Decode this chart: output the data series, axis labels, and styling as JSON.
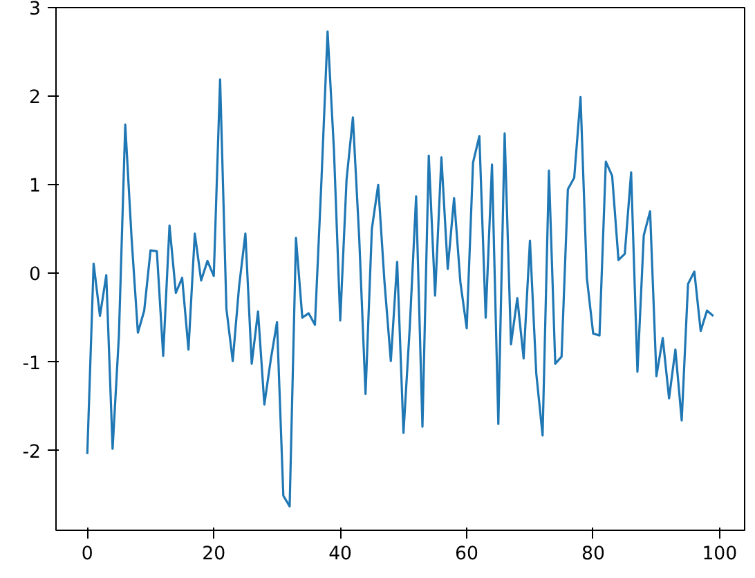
{
  "chart_data": {
    "type": "line",
    "x": [
      0,
      1,
      2,
      3,
      4,
      5,
      6,
      7,
      8,
      9,
      10,
      11,
      12,
      13,
      14,
      15,
      16,
      17,
      18,
      19,
      20,
      21,
      22,
      23,
      24,
      25,
      26,
      27,
      28,
      29,
      30,
      31,
      32,
      33,
      34,
      35,
      36,
      37,
      38,
      39,
      40,
      41,
      42,
      43,
      44,
      45,
      46,
      47,
      48,
      49,
      50,
      51,
      52,
      53,
      54,
      55,
      56,
      57,
      58,
      59,
      60,
      61,
      62,
      63,
      64,
      65,
      66,
      67,
      68,
      69,
      70,
      71,
      72,
      73,
      74,
      75,
      76,
      77,
      78,
      79,
      80,
      81,
      82,
      83,
      84,
      85,
      86,
      87,
      88,
      89,
      90,
      91,
      92,
      93,
      94,
      95,
      96,
      97,
      98,
      99
    ],
    "series": [
      {
        "color": "#1f77b4",
        "values": [
          -2.04,
          0.11,
          -0.48,
          -0.02,
          -1.98,
          -0.7,
          1.68,
          0.4,
          -0.67,
          -0.42,
          0.26,
          0.25,
          -0.93,
          0.54,
          -0.22,
          -0.05,
          -0.86,
          0.45,
          -0.08,
          0.14,
          -0.03,
          2.19,
          -0.4,
          -0.99,
          -0.15,
          0.45,
          -1.02,
          -0.43,
          -1.48,
          -0.98,
          -0.55,
          -2.51,
          -2.63,
          0.4,
          -0.5,
          -0.45,
          -0.58,
          1.0,
          2.73,
          1.4,
          -0.53,
          1.06,
          1.76,
          0.4,
          -1.36,
          0.5,
          1.0,
          -0.1,
          -0.99,
          0.13,
          -1.8,
          -0.6,
          0.87,
          -1.73,
          1.33,
          -0.25,
          1.31,
          0.05,
          0.85,
          -0.1,
          -0.62,
          1.25,
          1.55,
          -0.5,
          1.23,
          -1.7,
          1.58,
          -0.8,
          -0.28,
          -0.96,
          0.37,
          -1.13,
          -1.83,
          1.16,
          -1.02,
          -0.94,
          0.95,
          1.08,
          1.99,
          -0.05,
          -0.68,
          -0.7,
          1.26,
          1.1,
          0.15,
          0.22,
          1.14,
          -1.11,
          0.43,
          0.7,
          -1.16,
          -0.73,
          -1.41,
          -0.86,
          -1.66,
          -0.12,
          0.02,
          -0.65,
          -0.42,
          -0.48
        ]
      }
    ],
    "xlim": [
      -4.95,
      103.95
    ],
    "ylim": [
      -2.9,
      3.0
    ],
    "xticks": [
      0,
      20,
      40,
      60,
      80,
      100
    ],
    "yticks": [
      -2,
      -1,
      0,
      1,
      2,
      3
    ],
    "grid": false,
    "marker": "none",
    "line_style": "solid"
  }
}
